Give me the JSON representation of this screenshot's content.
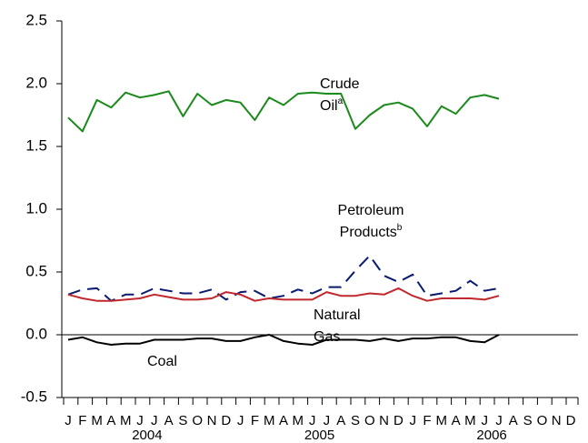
{
  "chart_data": {
    "type": "line",
    "categories": [
      "J",
      "F",
      "M",
      "A",
      "M",
      "J",
      "J",
      "A",
      "S",
      "O",
      "N",
      "D",
      "J",
      "F",
      "M",
      "A",
      "M",
      "J",
      "J",
      "A",
      "S",
      "O",
      "N",
      "D",
      "J",
      "F",
      "M",
      "A",
      "M",
      "J",
      "J",
      "A",
      "S",
      "O",
      "N",
      "D"
    ],
    "years": [
      "2004",
      "2005",
      "2006"
    ],
    "ylim": [
      -0.5,
      2.5
    ],
    "yticks": [
      -0.5,
      {
        "value": 0,
        "label": "0.0"
      },
      0.5,
      {
        "value": 1,
        "label": "1.0"
      },
      1.5,
      {
        "value": 2,
        "label": "2.0"
      },
      2.5
    ],
    "series": [
      {
        "name": "Crude Oil",
        "footnote": "a",
        "color": "#1a8a1a",
        "dash": false,
        "values": [
          1.73,
          1.62,
          1.87,
          1.81,
          1.93,
          1.89,
          1.91,
          1.94,
          1.74,
          1.92,
          1.83,
          1.87,
          1.85,
          1.71,
          1.89,
          1.83,
          1.92,
          1.93,
          1.92,
          1.92,
          1.64,
          1.75,
          1.83,
          1.85,
          1.8,
          1.66,
          1.82,
          1.76,
          1.89,
          1.91,
          1.88,
          null,
          null,
          null,
          null,
          null
        ]
      },
      {
        "name": "Petroleum Products",
        "footnote": "b",
        "color": "#0a1a6e",
        "dash": true,
        "values": [
          0.32,
          0.36,
          0.37,
          0.27,
          0.32,
          0.32,
          0.37,
          0.35,
          0.33,
          0.33,
          0.36,
          0.28,
          0.34,
          0.35,
          0.29,
          0.31,
          0.36,
          0.33,
          0.38,
          0.38,
          0.51,
          0.63,
          0.47,
          0.42,
          0.48,
          0.31,
          0.33,
          0.35,
          0.43,
          0.35,
          0.37,
          null,
          null,
          null,
          null,
          null
        ]
      },
      {
        "name": "Natural Gas",
        "color": "#c0282d",
        "dash": false,
        "values": [
          0.32,
          0.29,
          0.27,
          0.27,
          0.28,
          0.29,
          0.32,
          0.3,
          0.28,
          0.28,
          0.29,
          0.34,
          0.32,
          0.27,
          0.29,
          0.28,
          0.28,
          0.28,
          0.34,
          0.31,
          0.31,
          0.33,
          0.32,
          0.37,
          0.31,
          0.27,
          0.29,
          0.29,
          0.29,
          0.28,
          0.31,
          null,
          null,
          null,
          null,
          null
        ]
      },
      {
        "name": "Coal",
        "color": "#000000",
        "dash": false,
        "values": [
          -0.04,
          -0.02,
          -0.06,
          -0.08,
          -0.07,
          -0.07,
          -0.04,
          -0.04,
          -0.04,
          -0.03,
          -0.03,
          -0.05,
          -0.05,
          -0.02,
          0.0,
          -0.05,
          -0.07,
          -0.08,
          -0.04,
          -0.04,
          -0.04,
          -0.05,
          -0.03,
          -0.05,
          -0.03,
          -0.03,
          -0.02,
          -0.02,
          -0.05,
          -0.06,
          0.0,
          null,
          null,
          null,
          null,
          null
        ]
      }
    ]
  }
}
